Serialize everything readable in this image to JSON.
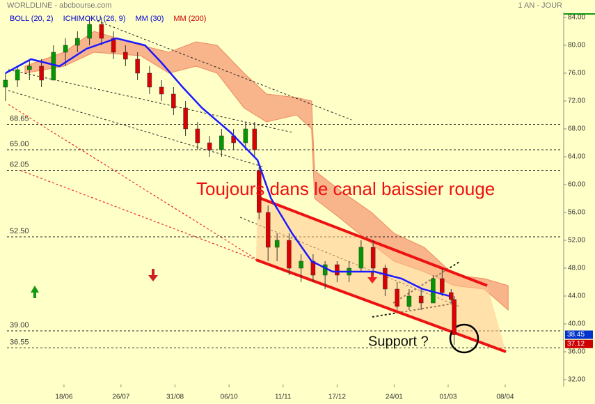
{
  "chart_data": {
    "type": "candlestick",
    "title": "WORLDLINE - abcbourse.com",
    "period": "1 AN - JOUR",
    "indicators": [
      {
        "name": "BOLL (20, 2)",
        "color": "#0000cc"
      },
      {
        "name": "ICHIMOKU (26, 9)",
        "color": "#0000cc"
      },
      {
        "name": "MM (30)",
        "color": "#0000cc"
      },
      {
        "name": "MM (200)",
        "color": "#cc0000"
      }
    ],
    "x": [
      1,
      9,
      17,
      25,
      33,
      41,
      49,
      57,
      65,
      73,
      81,
      89,
      97,
      105,
      113,
      121,
      129,
      137,
      145,
      153,
      161,
      167,
      170,
      176,
      182,
      190,
      198,
      206,
      214,
      222,
      230,
      238,
      246,
      254,
      262,
      270,
      278,
      286,
      292,
      298,
      300
    ],
    "open": [
      74,
      75,
      76.5,
      77,
      75,
      79,
      80,
      81,
      83,
      81,
      79,
      78,
      76,
      74,
      73,
      71,
      68,
      66,
      65,
      67,
      66,
      68,
      62,
      56,
      51,
      52,
      48,
      49,
      47,
      48.5,
      47,
      48,
      51,
      48,
      45,
      42.5,
      44,
      43,
      46.5,
      44.5,
      43.5
    ],
    "high": [
      76,
      77,
      78,
      78,
      80,
      81,
      82,
      84,
      84,
      82,
      80,
      79,
      77,
      75,
      74,
      72,
      69,
      67,
      68,
      68,
      69,
      69,
      62.5,
      57,
      53,
      53,
      50,
      50,
      49,
      49,
      49,
      52,
      52,
      48.5,
      46,
      45,
      45,
      47,
      48,
      45,
      44
    ],
    "low": [
      72,
      74,
      75,
      74,
      75,
      77,
      79,
      80,
      80,
      78,
      77,
      75,
      73,
      72,
      70,
      67,
      65,
      64,
      64,
      65,
      65,
      64,
      55,
      49,
      49,
      47,
      46,
      46,
      45,
      46,
      46,
      47.5,
      47,
      44,
      42,
      42,
      42,
      43,
      44,
      43,
      37
    ],
    "close": [
      75,
      76.5,
      77,
      75,
      79,
      80,
      81,
      83,
      81,
      79,
      78,
      76,
      74,
      73,
      71,
      68,
      66,
      65,
      67,
      66,
      68,
      65,
      56,
      51,
      52,
      48,
      49,
      47,
      48.5,
      47,
      48,
      51,
      48,
      45,
      42.5,
      44,
      43,
      46.5,
      44.5,
      43.5,
      38.45
    ],
    "up_color": "#009900",
    "down_color": "#dd0000",
    "ma30": {
      "name": "MM (30)",
      "color": "#1a1aff",
      "x": [
        1,
        18,
        37,
        55,
        75,
        94,
        105,
        119,
        132,
        151,
        169,
        178,
        192,
        205,
        219,
        233,
        247,
        265,
        279,
        297
      ],
      "values": [
        76,
        78,
        77,
        79.5,
        81,
        80,
        77.5,
        74,
        71,
        67.5,
        63.5,
        58,
        53,
        49,
        47.5,
        47.5,
        47.5,
        46.5,
        45,
        44
      ]
    },
    "cloud": {
      "name": "ICHIMOKU (26, 9)",
      "color": "#f8b48a",
      "edge": "#ee8a60",
      "x": [
        14,
        40,
        60,
        91,
        110,
        128,
        142,
        160,
        175,
        195,
        205,
        207,
        225,
        245,
        260,
        280,
        300,
        320,
        336
      ],
      "upper": [
        77,
        79,
        82,
        80,
        79,
        80.5,
        80,
        76,
        73,
        72.5,
        72,
        62,
        59,
        56,
        53,
        51,
        47,
        46.5,
        45.5
      ],
      "lower": [
        76,
        77,
        79,
        78.5,
        76,
        77,
        76,
        71,
        69,
        70,
        68,
        58,
        55,
        51.5,
        49,
        47.5,
        45.5,
        45,
        42
      ]
    },
    "levels": [
      68.65,
      {
        "value": 65,
        "label": "65.00"
      },
      62.05,
      {
        "value": 52.5,
        "label": "52.50"
      },
      {
        "value": 39,
        "label": "39.00"
      },
      36.55
    ],
    "price_tags": [
      {
        "value": 38.45,
        "color": "#0033cc"
      },
      {
        "value": 37.12,
        "color": "#cc0000"
      }
    ],
    "annotations": [
      "Toujours dans le canal baissier rouge",
      "Support ?"
    ],
    "xlim": [
      2,
      373
    ],
    "xticks": [
      {
        "value": 40,
        "label": "18/06"
      },
      {
        "value": 78,
        "label": "26/07"
      },
      {
        "value": 114,
        "label": "31/08"
      },
      {
        "value": 150,
        "label": "06/10"
      },
      {
        "value": 186,
        "label": "11/11"
      },
      {
        "value": 222,
        "label": "17/12"
      },
      {
        "value": 260,
        "label": "24/01"
      },
      {
        "value": 296,
        "label": "01/03"
      },
      {
        "value": 334,
        "label": "08/04"
      }
    ],
    "ylim": [
      31.3,
      84.7
    ],
    "yticks": [
      {
        "value": 32,
        "label": "32.00"
      },
      {
        "value": 36,
        "label": "36.00"
      },
      {
        "value": 40,
        "label": "40.00"
      },
      {
        "value": 44,
        "label": "44.00"
      },
      {
        "value": 48,
        "label": "48.00"
      },
      {
        "value": 52,
        "label": "52.00"
      },
      {
        "value": 56,
        "label": "56.00"
      },
      {
        "value": 60,
        "label": "60.00"
      },
      {
        "value": 64,
        "label": "64.00"
      },
      {
        "value": 68,
        "label": "68.00"
      },
      {
        "value": 72,
        "label": "72.00"
      },
      {
        "value": 76,
        "label": "76.00"
      },
      {
        "value": 80,
        "label": "80.00"
      },
      {
        "value": 84,
        "label": "84.00"
      }
    ]
  }
}
